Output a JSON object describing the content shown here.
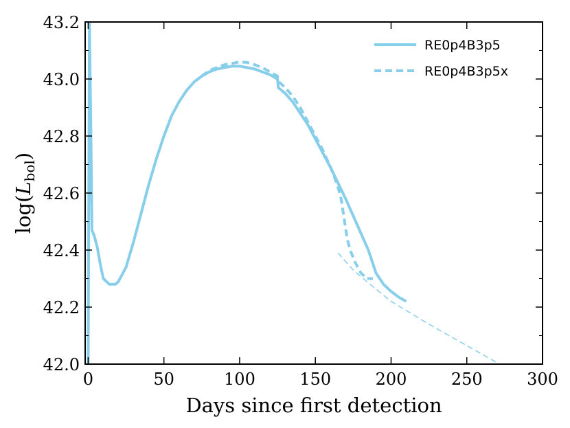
{
  "chart_data": {
    "type": "line",
    "xlabel": "Days since first detection",
    "ylabel_main": "log(",
    "ylabel_var": "L",
    "ylabel_sub": "bol",
    "ylabel_close": ")",
    "xlim": [
      -2,
      300
    ],
    "ylim": [
      42.0,
      43.2
    ],
    "x_ticks": [
      0,
      50,
      100,
      150,
      200,
      250,
      300
    ],
    "x_tick_labels": [
      "0",
      "50",
      "100",
      "150",
      "200",
      "250",
      "300"
    ],
    "y_ticks": [
      42.0,
      42.2,
      42.4,
      42.6,
      42.8,
      43.0,
      43.2
    ],
    "y_tick_labels": [
      "42.0",
      "42.2",
      "42.4",
      "42.6",
      "42.8",
      "43.0",
      "43.2"
    ],
    "grid": false,
    "legend_position": "top-right",
    "line_color": "#87ceeb",
    "series": [
      {
        "name": "RE0p4B3p5",
        "style": "solid",
        "x": [
          0.0,
          0.8,
          1.6,
          2.5,
          4.0,
          6.0,
          8.0,
          10.0,
          12.0,
          14.0,
          16.0,
          18.0,
          20.0,
          22.0,
          25.0,
          30.0,
          35.0,
          40.0,
          45.0,
          50.0,
          55.0,
          60.0,
          65.0,
          70.0,
          75.0,
          80.0,
          85.0,
          90.0,
          95.0,
          100.0,
          105.0,
          110.0,
          115.0,
          120.0,
          125.0,
          125.5,
          130.0,
          135.0,
          140.0,
          145.0,
          150.0,
          155.0,
          160.0,
          165.0,
          170.0,
          175.0,
          180.0,
          185.0,
          190.0,
          195.0,
          200.0,
          205.0,
          210.0
        ],
        "y": [
          42.0,
          43.2,
          42.9,
          42.47,
          42.45,
          42.41,
          42.35,
          42.3,
          42.29,
          42.28,
          42.28,
          42.28,
          42.29,
          42.31,
          42.34,
          42.43,
          42.53,
          42.63,
          42.72,
          42.8,
          42.87,
          42.92,
          42.96,
          42.99,
          43.01,
          43.025,
          43.035,
          43.04,
          43.045,
          43.045,
          43.04,
          43.035,
          43.025,
          43.015,
          43.0,
          42.97,
          42.95,
          42.92,
          42.88,
          42.84,
          42.79,
          42.74,
          42.69,
          42.635,
          42.58,
          42.52,
          42.46,
          42.4,
          42.32,
          42.28,
          42.255,
          42.235,
          42.22
        ]
      },
      {
        "name": "RE0p4B3p5x",
        "style": "dashed",
        "x": [
          75.0,
          80.0,
          85.0,
          90.0,
          95.0,
          100.0,
          105.0,
          110.0,
          115.0,
          120.0,
          125.0,
          126.0,
          130.0,
          135.0,
          140.0,
          145.0,
          150.0,
          155.0,
          160.0,
          163.0,
          165.0,
          167.0,
          169.0,
          171.0,
          173.0,
          176.0,
          180.0,
          184.0,
          188.0
        ],
        "y": [
          43.01,
          43.03,
          43.04,
          43.05,
          43.055,
          43.06,
          43.058,
          43.05,
          43.04,
          43.025,
          43.01,
          42.99,
          42.97,
          42.94,
          42.9,
          42.85,
          42.8,
          42.75,
          42.69,
          42.65,
          42.62,
          42.58,
          42.51,
          42.44,
          42.4,
          42.36,
          42.32,
          42.3,
          42.3
        ]
      },
      {
        "name": "",
        "style": "thin-dashed",
        "x": [
          165.0,
          175.0,
          185.0,
          200.0,
          225.0,
          250.0,
          275.0
        ],
        "y": [
          42.39,
          42.33,
          42.285,
          42.22,
          42.14,
          42.065,
          41.99
        ]
      }
    ]
  }
}
